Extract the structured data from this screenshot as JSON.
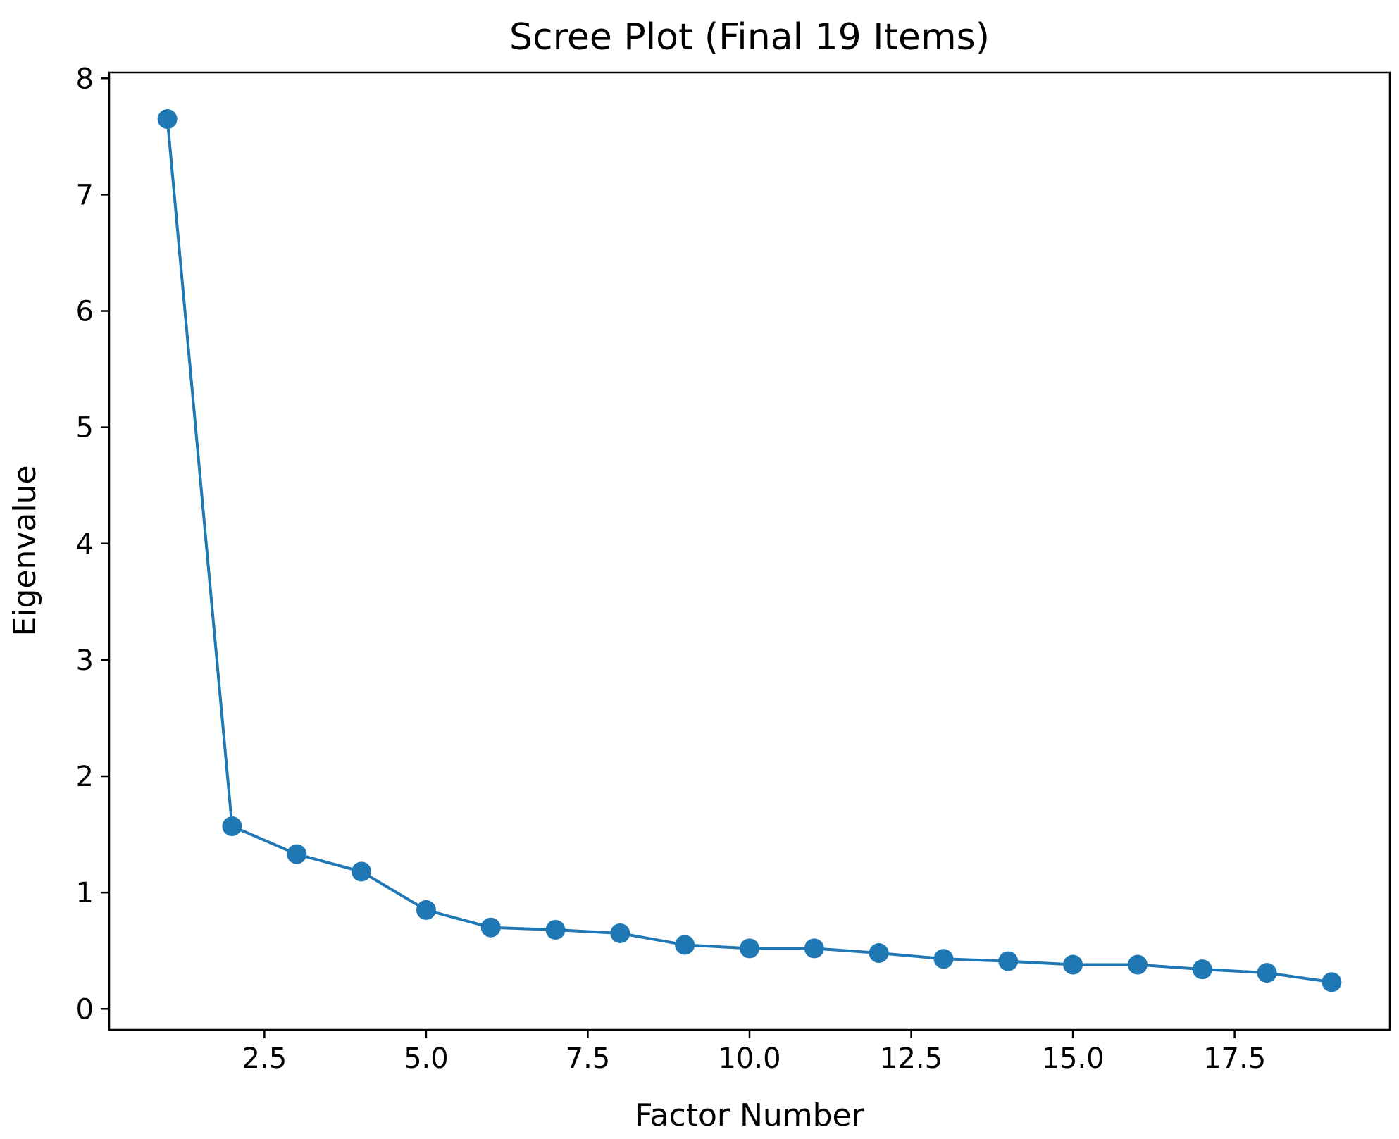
{
  "chart_data": {
    "type": "line",
    "title": "Scree Plot (Final 19 Items)",
    "xlabel": "Factor Number",
    "ylabel": "Eigenvalue",
    "xlim": [
      0.1,
      19.9
    ],
    "ylim": [
      -0.18,
      8.05
    ],
    "x_ticks": [
      2.5,
      5.0,
      7.5,
      10.0,
      12.5,
      15.0,
      17.5
    ],
    "x_tick_labels": [
      "2.5",
      "5.0",
      "7.5",
      "10.0",
      "12.5",
      "15.0",
      "17.5"
    ],
    "y_ticks": [
      0,
      1,
      2,
      3,
      4,
      5,
      6,
      7,
      8
    ],
    "y_tick_labels": [
      "0",
      "1",
      "2",
      "3",
      "4",
      "5",
      "6",
      "7",
      "8"
    ],
    "grid": false,
    "marker": "circle",
    "color": "#1f77b4",
    "series": [
      {
        "x": [
          1,
          2,
          3,
          4,
          5,
          6,
          7,
          8,
          9,
          10,
          11,
          12,
          13,
          14,
          15,
          16,
          17,
          18,
          19
        ],
        "values": [
          7.65,
          1.57,
          1.33,
          1.18,
          0.85,
          0.7,
          0.68,
          0.65,
          0.55,
          0.52,
          0.52,
          0.48,
          0.43,
          0.41,
          0.38,
          0.38,
          0.34,
          0.31,
          0.23
        ]
      }
    ]
  }
}
